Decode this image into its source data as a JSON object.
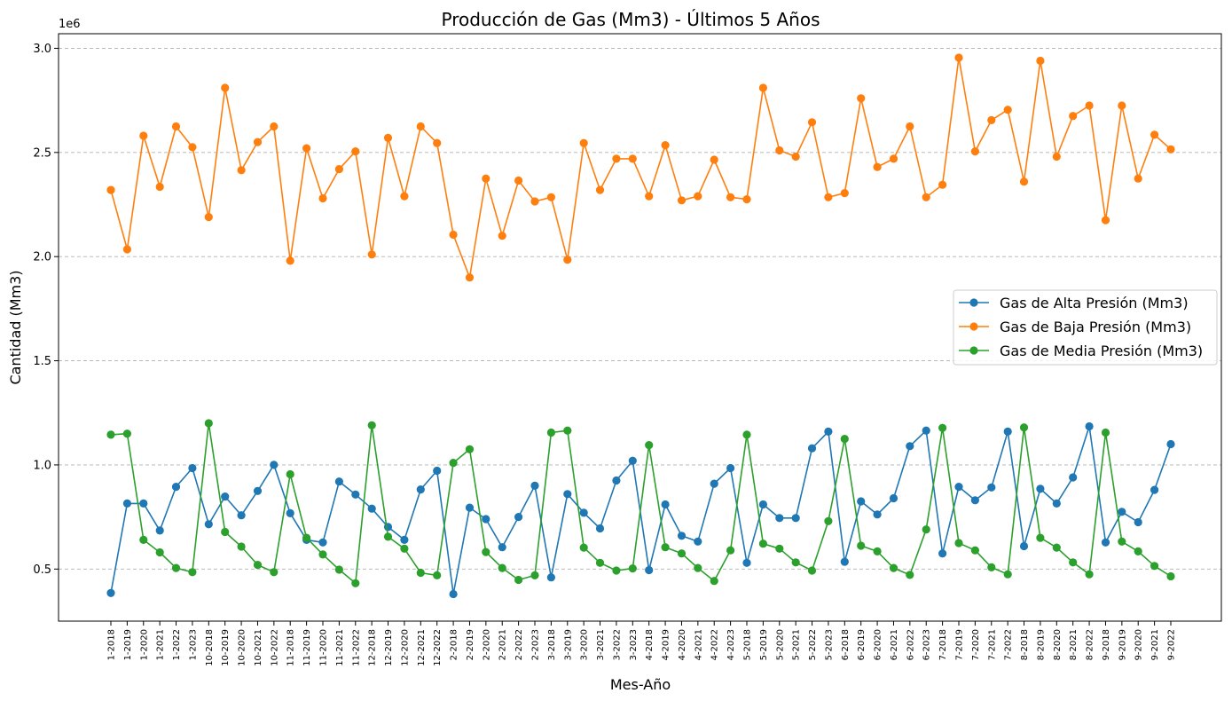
{
  "chart_data": {
    "type": "line",
    "title": "Producción de Gas (Mm3) - Últimos 5 Años",
    "xlabel": "Mes-Año",
    "ylabel": "Cantidad (Mm3)",
    "y_scale_label": "1e6",
    "ylim": [
      250000,
      3070000
    ],
    "yticks": [
      0.5,
      1.0,
      1.5,
      2.0,
      2.5,
      3.0
    ],
    "ytick_labels": [
      "0.5",
      "1.0",
      "1.5",
      "2.0",
      "2.5",
      "3.0"
    ],
    "grid": "y-dashed",
    "legend_position": "center-right",
    "categories": [
      "1-2018",
      "1-2019",
      "1-2020",
      "1-2021",
      "1-2022",
      "1-2023",
      "10-2018",
      "10-2019",
      "10-2020",
      "10-2021",
      "10-2022",
      "11-2018",
      "11-2019",
      "11-2020",
      "11-2021",
      "11-2022",
      "12-2018",
      "12-2019",
      "12-2020",
      "12-2021",
      "12-2022",
      "2-2018",
      "2-2019",
      "2-2020",
      "2-2021",
      "2-2022",
      "2-2023",
      "3-2018",
      "3-2019",
      "3-2020",
      "3-2021",
      "3-2022",
      "3-2023",
      "4-2018",
      "4-2019",
      "4-2020",
      "4-2021",
      "4-2022",
      "4-2023",
      "5-2018",
      "5-2019",
      "5-2020",
      "5-2021",
      "5-2022",
      "5-2023",
      "6-2018",
      "6-2019",
      "6-2020",
      "6-2021",
      "6-2022",
      "6-2023",
      "7-2018",
      "7-2019",
      "7-2020",
      "7-2021",
      "7-2022",
      "8-2018",
      "8-2019",
      "8-2020",
      "8-2021",
      "8-2022",
      "9-2018",
      "9-2019",
      "9-2020",
      "9-2021",
      "9-2022"
    ],
    "series": [
      {
        "name": "Gas de Alta Presión (Mm3)",
        "color": "#1f77b4",
        "values": [
          385000,
          815000,
          815000,
          685000,
          895000,
          985000,
          715000,
          848000,
          758000,
          875000,
          1000000,
          768000,
          640000,
          628000,
          920000,
          858000,
          790000,
          702000,
          640000,
          882000,
          972000,
          380000,
          795000,
          740000,
          605000,
          750000,
          900000,
          460000,
          860000,
          770000,
          695000,
          925000,
          1020000,
          495000,
          810000,
          660000,
          632000,
          910000,
          985000,
          530000,
          810000,
          745000,
          745000,
          1080000,
          1160000,
          535000,
          825000,
          762000,
          840000,
          1090000,
          1165000,
          575000,
          895000,
          830000,
          892000,
          1160000,
          610000,
          885000,
          815000,
          940000,
          1185000,
          628000,
          775000,
          725000,
          880000,
          1100000
        ]
      },
      {
        "name": "Gas de Baja Presión (Mm3)",
        "color": "#ff7f0e",
        "values": [
          2320000,
          2035000,
          2580000,
          2335000,
          2625000,
          2525000,
          2190000,
          2810000,
          2415000,
          2550000,
          2625000,
          1980000,
          2520000,
          2280000,
          2420000,
          2505000,
          2010000,
          2570000,
          2290000,
          2625000,
          2545000,
          2105000,
          1900000,
          2375000,
          2100000,
          2365000,
          2265000,
          2285000,
          1985000,
          2545000,
          2320000,
          2470000,
          2470000,
          2290000,
          2535000,
          2270000,
          2290000,
          2465000,
          2285000,
          2275000,
          2810000,
          2510000,
          2480000,
          2645000,
          2285000,
          2305000,
          2760000,
          2430000,
          2470000,
          2625000,
          2285000,
          2345000,
          2955000,
          2505000,
          2655000,
          2705000,
          2360000,
          2940000,
          2480000,
          2675000,
          2725000,
          2175000,
          2725000,
          2375000,
          2585000,
          2515000
        ]
      },
      {
        "name": "Gas de Media Presión (Mm3)",
        "color": "#2ca02c",
        "values": [
          1145000,
          1150000,
          640000,
          580000,
          505000,
          485000,
          1200000,
          678000,
          608000,
          520000,
          485000,
          955000,
          650000,
          570000,
          497000,
          432000,
          1190000,
          655000,
          598000,
          482000,
          470000,
          1010000,
          1075000,
          582000,
          505000,
          448000,
          470000,
          1155000,
          1165000,
          603000,
          530000,
          493000,
          503000,
          1095000,
          605000,
          575000,
          505000,
          443000,
          590000,
          1145000,
          622000,
          598000,
          532000,
          493000,
          730000,
          1125000,
          612000,
          585000,
          505000,
          472000,
          690000,
          1178000,
          625000,
          590000,
          508000,
          475000,
          1180000,
          650000,
          603000,
          532000,
          475000,
          1155000,
          632000,
          585000,
          515000,
          465000
        ]
      }
    ]
  }
}
